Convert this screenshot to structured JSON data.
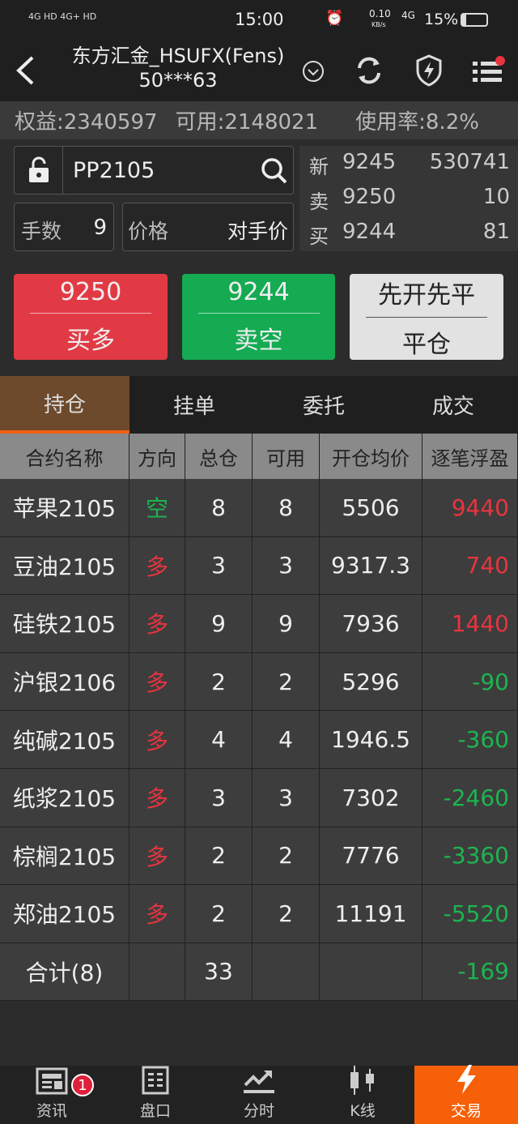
{
  "status_bar": {
    "network": "4G HD  4G+ HD",
    "time": "15:00",
    "speed": "0.10",
    "speed_unit": "KB/s",
    "net2": "4G",
    "battery": "15%"
  },
  "header": {
    "title": "东方汇金_HSUFX(Fens)",
    "account": "50***63"
  },
  "account": {
    "equity": "权益:2340597",
    "available": "可用:2148021",
    "usage": "使用率:8.2%"
  },
  "order": {
    "symbol": "PP2105",
    "qty_label": "手数",
    "qty": "9",
    "price_label": "价格",
    "price_value": "对手价"
  },
  "quote": [
    {
      "label": "新",
      "price": "9245",
      "vol": "530741"
    },
    {
      "label": "卖",
      "price": "9250",
      "vol": "10"
    },
    {
      "label": "买",
      "price": "9244",
      "vol": "81"
    }
  ],
  "buttons": {
    "buy_price": "9250",
    "buy_label": "买多",
    "sell_price": "9244",
    "sell_label": "卖空",
    "close_top": "先开先平",
    "close_label": "平仓"
  },
  "tabs": [
    "持仓",
    "挂单",
    "委托",
    "成交"
  ],
  "table": {
    "headers": [
      "合约名称",
      "方向",
      "总仓",
      "可用",
      "开仓均价",
      "逐笔浮盈"
    ],
    "rows": [
      [
        "苹果2105",
        "空",
        "8",
        "8",
        "5506",
        "9440"
      ],
      [
        "豆油2105",
        "多",
        "3",
        "3",
        "9317.3",
        "740"
      ],
      [
        "硅铁2105",
        "多",
        "9",
        "9",
        "7936",
        "1440"
      ],
      [
        "沪银2106",
        "多",
        "2",
        "2",
        "5296",
        "-90"
      ],
      [
        "纯碱2105",
        "多",
        "4",
        "4",
        "1946.5",
        "-360"
      ],
      [
        "纸浆2105",
        "多",
        "3",
        "3",
        "7302",
        "-2460"
      ],
      [
        "棕榈2105",
        "多",
        "2",
        "2",
        "7776",
        "-3360"
      ],
      [
        "郑油2105",
        "多",
        "2",
        "2",
        "11191",
        "-5520"
      ]
    ],
    "total": [
      "合计(8)",
      "",
      "33",
      "",
      "",
      "-169"
    ]
  },
  "colors": {
    "up": "#e8343f",
    "down": "#1db550",
    "accent": "#f56008"
  },
  "nav": [
    {
      "label": "资讯",
      "icon": "news-icon",
      "badge": "1"
    },
    {
      "label": "盘口",
      "icon": "orderbook-icon"
    },
    {
      "label": "分时",
      "icon": "trend-icon"
    },
    {
      "label": "K线",
      "icon": "candlestick-icon"
    },
    {
      "label": "交易",
      "icon": "lightning-icon"
    }
  ]
}
